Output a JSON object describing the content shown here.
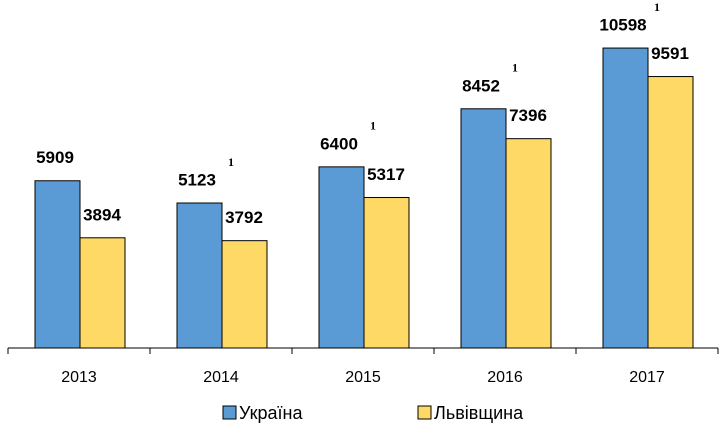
{
  "chart_data": {
    "type": "bar",
    "categories": [
      "2013",
      "2014",
      "2015",
      "2016",
      "2017"
    ],
    "series": [
      {
        "name": "Україна",
        "color": "#5b9bd5",
        "values": [
          5909,
          5123,
          6400,
          8452,
          10598
        ],
        "value_notes": [
          null,
          "1",
          "1",
          "1",
          "1"
        ]
      },
      {
        "name": "Львівщина",
        "color": "#ffd966",
        "values": [
          3894,
          3792,
          5317,
          7396,
          9591
        ]
      }
    ],
    "ylim": [
      0,
      10600
    ],
    "legend": "bottom"
  }
}
